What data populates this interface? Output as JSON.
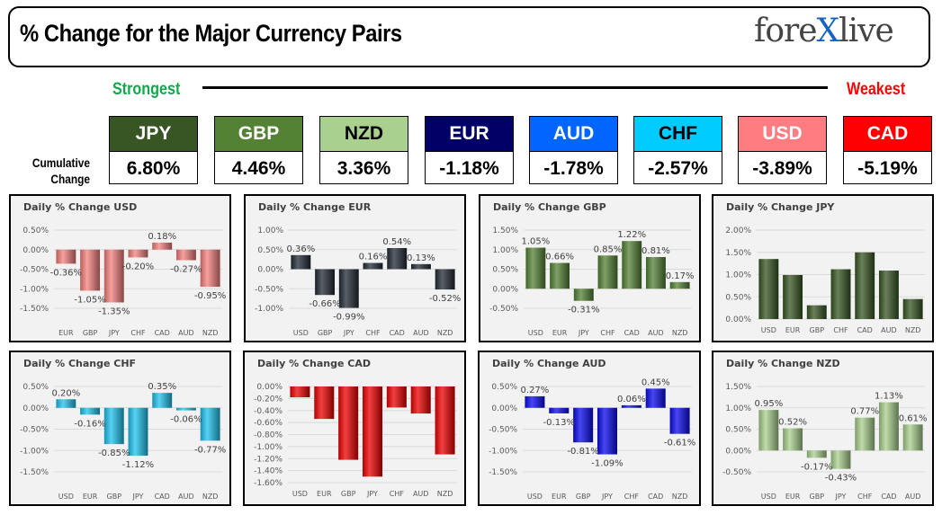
{
  "header": {
    "title": "% Change for the Major Currency Pairs",
    "logo": "forexlive"
  },
  "strength": {
    "strongest": "Strongest",
    "weakest": "Weakest",
    "row_label_1": "Cumulative",
    "row_label_2": "Change"
  },
  "colors": {
    "USD": "#f4807d",
    "EUR": "#222a35",
    "GBP": "#548235",
    "JPY": "#375623",
    "CHF": "#1fc3ee",
    "CAD": "#ee0000",
    "AUD": "#0a0aee",
    "NZD": "#a9d08e"
  },
  "ranking": [
    {
      "currency": "JPY",
      "value": "6.80%",
      "color": "#375623",
      "text": "#ffffff"
    },
    {
      "currency": "GBP",
      "value": "4.46%",
      "color": "#548235",
      "text": "#ffffff"
    },
    {
      "currency": "NZD",
      "value": "3.36%",
      "color": "#a9d08e",
      "text": "#000000"
    },
    {
      "currency": "EUR",
      "value": "-1.18%",
      "color": "#000066",
      "text": "#ffffff"
    },
    {
      "currency": "AUD",
      "value": "-1.78%",
      "color": "#0066ff",
      "text": "#ffffff"
    },
    {
      "currency": "CHF",
      "value": "-2.57%",
      "color": "#00ccff",
      "text": "#000000"
    },
    {
      "currency": "USD",
      "value": "-3.89%",
      "color": "#ff7c80",
      "text": "#ffffff"
    },
    {
      "currency": "CAD",
      "value": "-5.19%",
      "color": "#ff0000",
      "text": "#ffffff"
    }
  ],
  "chart_data": [
    {
      "type": "bar",
      "title": "Daily % Change USD",
      "categories": [
        "EUR",
        "GBP",
        "JPY",
        "CHF",
        "CAD",
        "AUD",
        "NZD"
      ],
      "values": [
        -0.36,
        -1.05,
        -1.35,
        -0.2,
        0.18,
        -0.27,
        -0.95
      ],
      "labels": [
        "-0.36%",
        "-1.05%",
        "-1.35%",
        "-0.20%",
        "0.18%",
        "-0.27%",
        "-0.95%"
      ],
      "ylim": [
        -1.5,
        0.5
      ],
      "ystep": 0.5,
      "color": "#f4807d",
      "grid": true
    },
    {
      "type": "bar",
      "title": "Daily % Change EUR",
      "categories": [
        "USD",
        "GBP",
        "JPY",
        "CHF",
        "CAD",
        "AUD",
        "NZD"
      ],
      "values": [
        0.36,
        -0.66,
        -0.99,
        0.16,
        0.54,
        0.13,
        -0.52
      ],
      "labels": [
        "0.36%",
        "-0.66%",
        "-0.99%",
        "0.16%",
        "0.54%",
        "0.13%",
        "-0.52%"
      ],
      "ylim": [
        -1.0,
        1.0
      ],
      "ystep": 0.5,
      "color": "#222a35",
      "grid": true
    },
    {
      "type": "bar",
      "title": "Daily % Change GBP",
      "categories": [
        "USD",
        "EUR",
        "JPY",
        "CHF",
        "CAD",
        "AUD",
        "NZD"
      ],
      "values": [
        1.05,
        0.66,
        -0.31,
        0.85,
        1.22,
        0.81,
        0.17
      ],
      "labels": [
        "1.05%",
        "0.66%",
        "-0.31%",
        "0.85%",
        "1.22%",
        "0.81%",
        "0.17%"
      ],
      "ylim": [
        -0.5,
        1.5
      ],
      "ystep": 0.5,
      "color": "#548235",
      "grid": true
    },
    {
      "type": "bar",
      "title": "Daily % Change JPY",
      "categories": [
        "USD",
        "EUR",
        "GBP",
        "CHF",
        "CAD",
        "AUD",
        "NZD"
      ],
      "values": [
        1.35,
        0.99,
        0.31,
        1.12,
        1.5,
        1.09,
        0.45
      ],
      "labels": [],
      "ylim": [
        0,
        2.0
      ],
      "ystep": 0.5,
      "color": "#375623",
      "grid": true
    },
    {
      "type": "bar",
      "title": "Daily % Change CHF",
      "categories": [
        "USD",
        "EUR",
        "GBP",
        "JPY",
        "CAD",
        "AUD",
        "NZD"
      ],
      "values": [
        0.2,
        -0.16,
        -0.85,
        -1.12,
        0.35,
        -0.06,
        -0.77
      ],
      "labels": [
        "0.20%",
        "-0.16%",
        "-0.85%",
        "-1.12%",
        "0.35%",
        "-0.06%",
        "-0.77%"
      ],
      "ylim": [
        -1.5,
        0.5
      ],
      "ystep": 0.5,
      "color": "#1fc3ee",
      "grid": true
    },
    {
      "type": "bar",
      "title": "Daily % Change CAD",
      "categories": [
        "USD",
        "EUR",
        "GBP",
        "JPY",
        "CHF",
        "AUD",
        "NZD"
      ],
      "values": [
        -0.18,
        -0.54,
        -1.22,
        -1.5,
        -0.35,
        -0.45,
        -1.13
      ],
      "labels": [],
      "ylim": [
        -1.6,
        0
      ],
      "ystep": 0.2,
      "color": "#ee0000",
      "grid": true
    },
    {
      "type": "bar",
      "title": "Daily % Change AUD",
      "categories": [
        "USD",
        "EUR",
        "GBP",
        "JPY",
        "CHF",
        "CAD",
        "NZD"
      ],
      "values": [
        0.27,
        -0.13,
        -0.81,
        -1.09,
        0.06,
        0.45,
        -0.61
      ],
      "labels": [
        "0.27%",
        "-0.13%",
        "-0.81%",
        "-1.09%",
        "0.06%",
        "0.45%",
        "-0.61%"
      ],
      "ylim": [
        -1.5,
        0.5
      ],
      "ystep": 0.5,
      "color": "#0a0aee",
      "grid": true
    },
    {
      "type": "bar",
      "title": "Daily % Change NZD",
      "categories": [
        "USD",
        "EUR",
        "GBP",
        "JPY",
        "CHF",
        "CAD",
        "AUD"
      ],
      "values": [
        0.95,
        0.52,
        -0.17,
        -0.43,
        0.77,
        1.13,
        0.61
      ],
      "labels": [
        "0.95%",
        "0.52%",
        "-0.17%",
        "-0.43%",
        "0.77%",
        "1.13%",
        "0.61%"
      ],
      "ylim": [
        -0.5,
        1.5
      ],
      "ystep": 0.5,
      "color": "#a9d08e",
      "grid": true
    }
  ]
}
